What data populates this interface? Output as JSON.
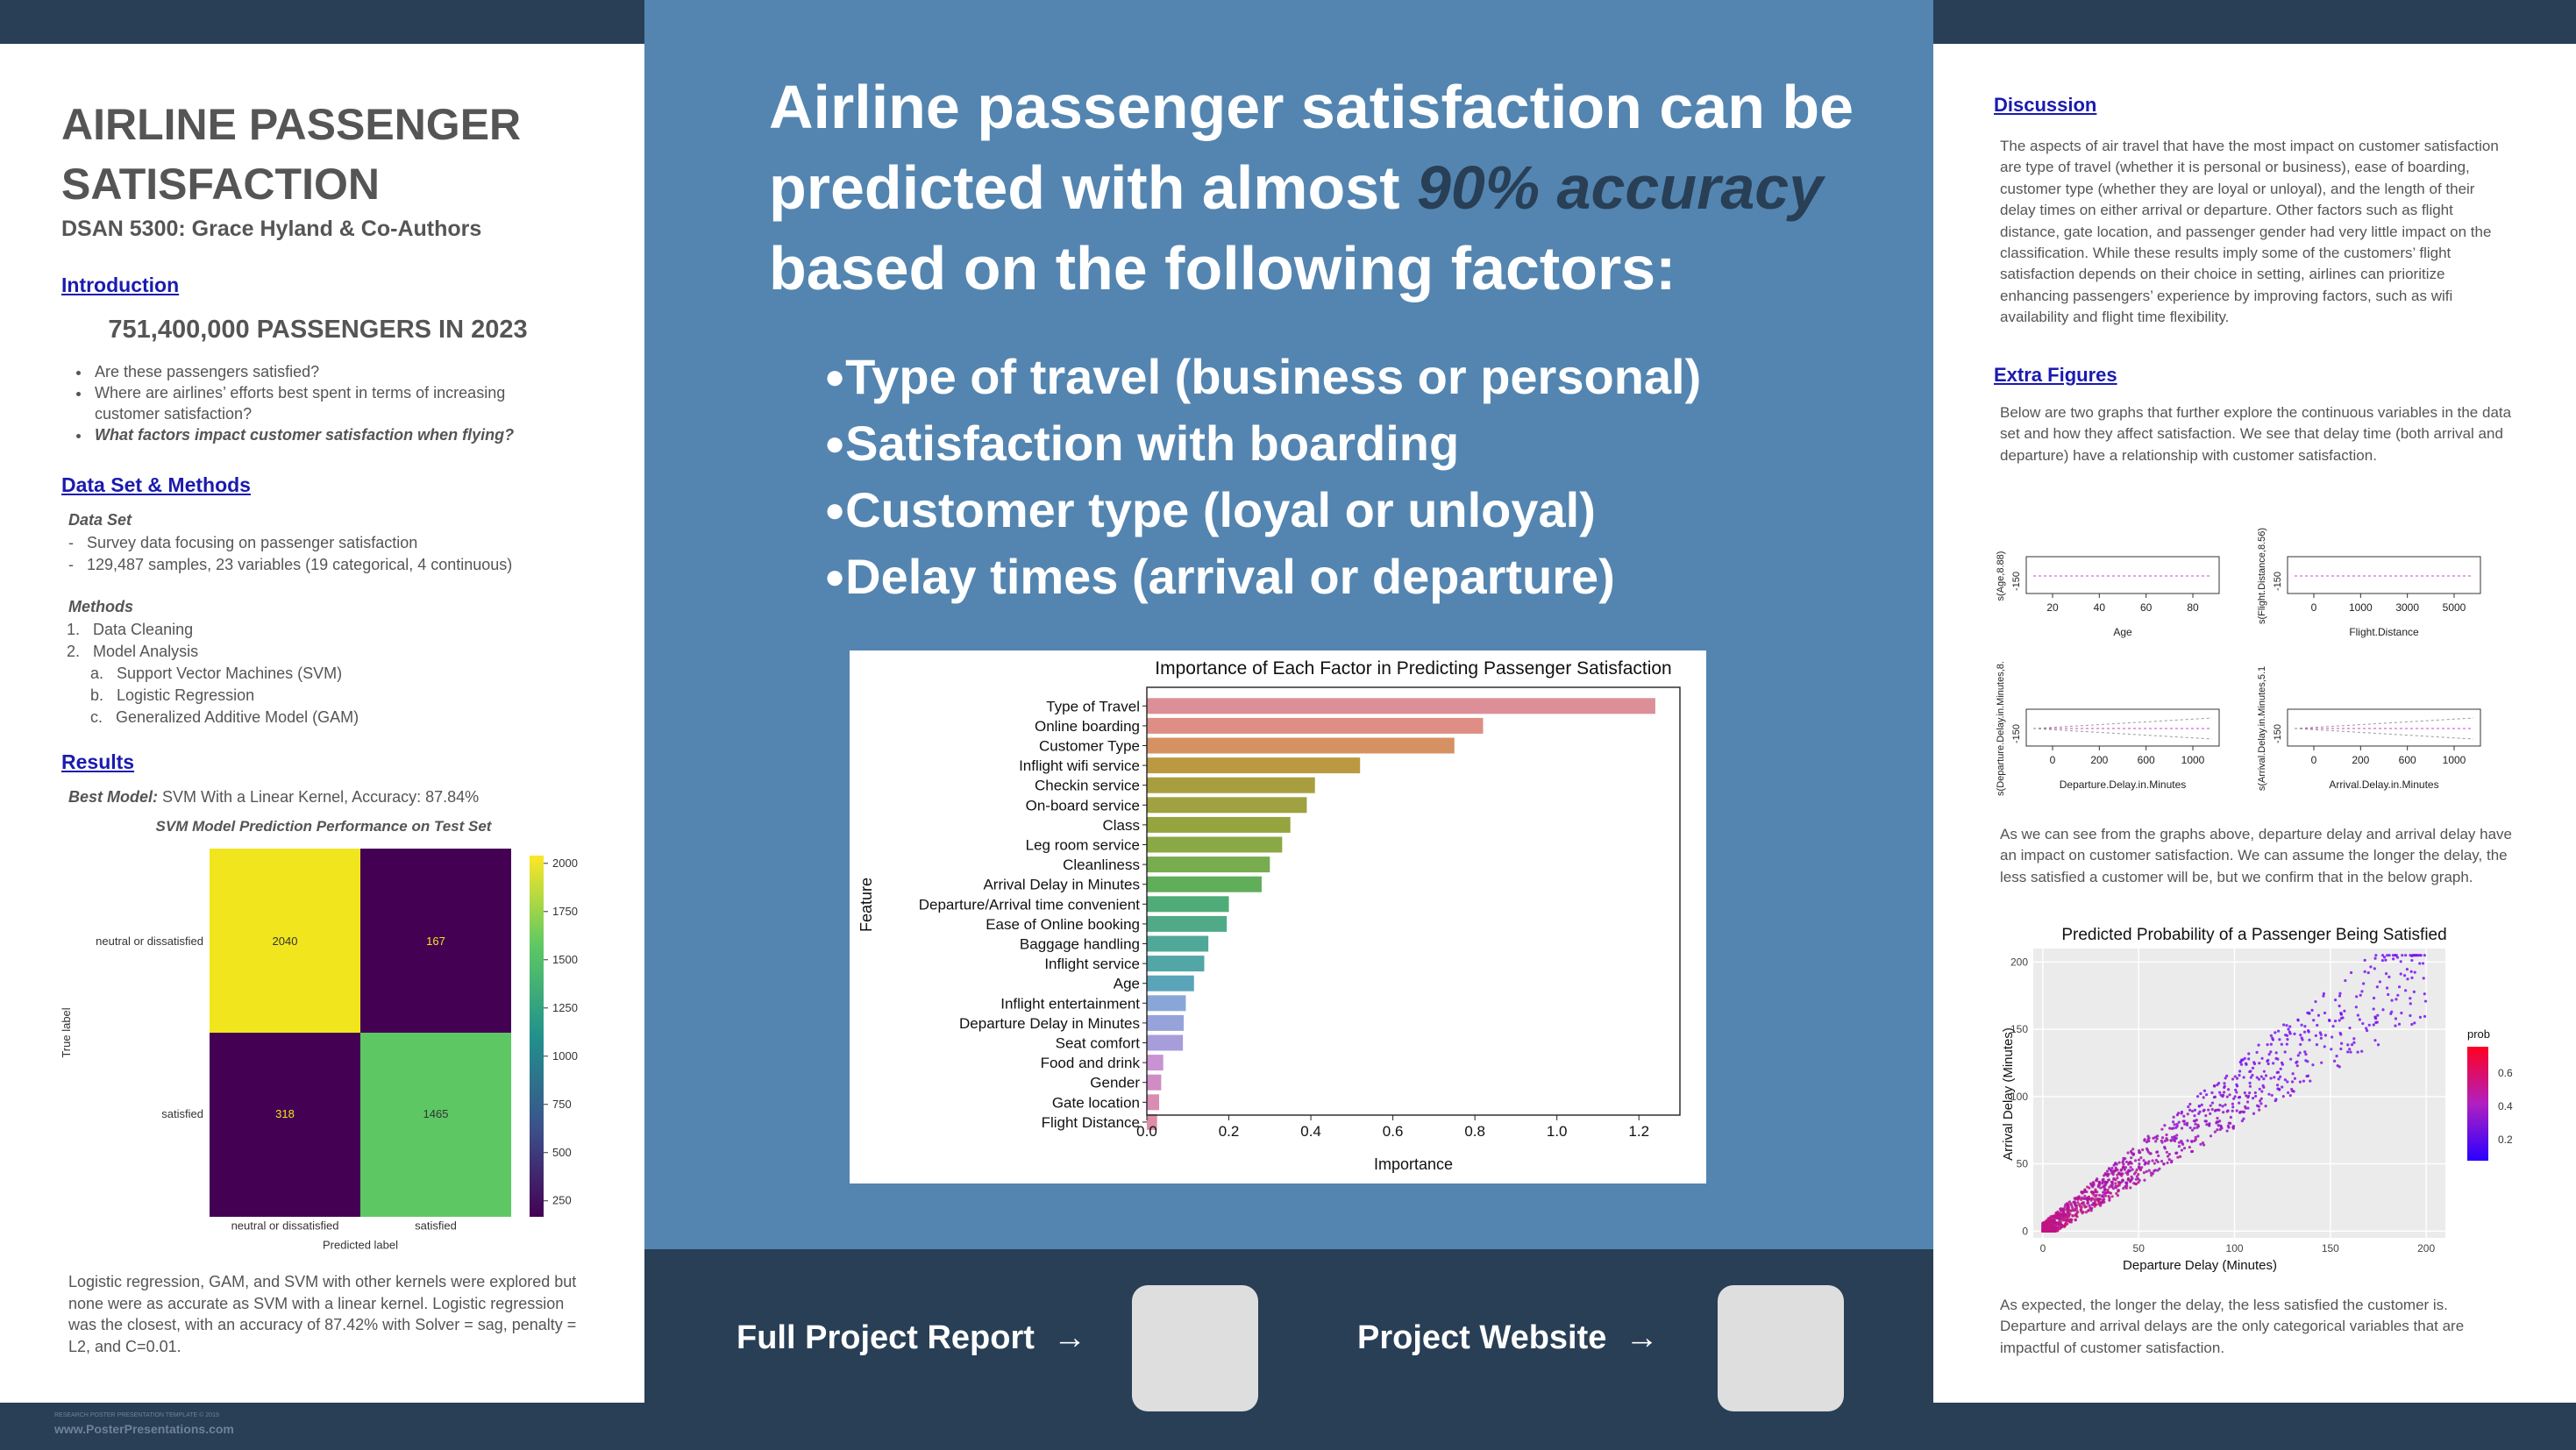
{
  "poster": {
    "title": "AIRLINE PASSENGER SATISFACTION",
    "authors": "DSAN 5300: Grace Hyland & Co-Authors"
  },
  "introduction": {
    "heading": "Introduction",
    "stat": "751,400,000 PASSENGERS IN 2023",
    "bullets": [
      "Are these passengers satisfied?",
      "Where are airlines’ efforts best spent in terms of increasing customer satisfaction?",
      "What factors impact customer satisfaction when flying?"
    ]
  },
  "methods": {
    "heading": "Data Set & Methods",
    "data_set_label": "Data Set",
    "data_set_items": [
      "Survey data focusing on passenger satisfaction",
      "129,487 samples, 23 variables (19 categorical, 4 continuous)"
    ],
    "methods_label": "Methods",
    "methods_items": [
      {
        "num": "1.",
        "text": "Data Cleaning"
      },
      {
        "num": "2.",
        "text": "Model Analysis"
      }
    ],
    "sub_items": [
      {
        "num": "a.",
        "text": "Support Vector Machines (SVM)"
      },
      {
        "num": "b.",
        "text": "Logistic Regression"
      },
      {
        "num": "c.",
        "text": "Generalized Additive Model (GAM)"
      }
    ]
  },
  "results": {
    "heading": "Results",
    "best_model_label": "Best Model:",
    "best_model_text": " SVM With a Linear Kernel, Accuracy: 87.84%",
    "conclusion": "Logistic regression, GAM, and SVM with other kernels were explored but none were as accurate as SVM with a linear kernel. Logistic regression was the closest, with an accuracy of 87.42% with Solver = sag, penalty = L2, and C=0.01."
  },
  "main": {
    "headline_part1": "Airline passenger satisfaction can be predicted with almost ",
    "headline_em": "90% accuracy",
    "headline_part2": " based on the following factors:",
    "factors": [
      "Type of travel (business or personal)",
      "Satisfaction with boarding",
      "Customer type (loyal or unloyal)",
      "Delay times (arrival or departure)"
    ]
  },
  "footer": {
    "report_label": "Full Project Report",
    "website_label": "Project Website",
    "arrow": "→",
    "template_note": "RESEARCH POSTER PRESENTATION TEMPLATE © 2019",
    "template_url": "www.PosterPresentations.com"
  },
  "discussion": {
    "heading": "Discussion",
    "text": "The aspects of air travel that have the most impact on customer satisfaction are type of travel (whether it is personal or business), ease of boarding, customer type (whether they are loyal or unloyal), and the length of their delay times on either arrival or departure. Other factors such as flight distance, gate location, and passenger gender had very little impact on the classification. While these results imply some of the customers’ flight satisfaction depends on their choice in setting, airlines can prioritize enhancing passengers’ experience by improving factors, such as wifi availability and flight time flexibility."
  },
  "extra": {
    "heading": "Extra Figures",
    "intro": "Below are two graphs that further explore the continuous variables in the data set and how they affect satisfaction. We see that delay time (both arrival and departure) have a relationship with customer satisfaction.",
    "middle": "As we can see from the graphs above, departure delay and arrival delay have an impact on customer satisfaction. We can assume the longer the delay, the less satisfied a customer will be, but we confirm that in the below graph.",
    "closing": "As expected, the longer the delay, the less satisfied the customer is. Departure and arrival delays are the only categorical variables that are impactful of customer satisfaction."
  },
  "colors": {
    "dark_band": "#283f56",
    "mid_blue": "#5385b0",
    "link_blue": "#1a1ab0",
    "text_gray": "#555555"
  },
  "chart_data": [
    {
      "type": "heatmap",
      "title": "SVM Model Prediction Performance on Test Set",
      "xlabel": "Predicted label",
      "ylabel": "True label",
      "x_categories": [
        "neutral or dissatisfied",
        "satisfied"
      ],
      "y_categories": [
        "neutral or dissatisfied",
        "satisfied"
      ],
      "values": [
        [
          2040,
          167
        ],
        [
          318,
          1465
        ]
      ],
      "colorbar_ticks": [
        250,
        500,
        750,
        1000,
        1250,
        1500,
        1750,
        2000
      ]
    },
    {
      "type": "bar",
      "orientation": "horizontal",
      "title": "Importance of Each Factor in Predicting Passenger Satisfaction",
      "xlabel": "Importance",
      "ylabel": "Feature",
      "xlim": [
        0,
        1.3
      ],
      "xticks": [
        "0.0",
        "0.2",
        "0.4",
        "0.6",
        "0.8",
        "1.0",
        "1.2"
      ],
      "categories": [
        "Type of Travel",
        "Online boarding",
        "Customer Type",
        "Inflight wifi service",
        "Checkin service",
        "On-board service",
        "Class",
        "Leg room service",
        "Cleanliness",
        "Arrival Delay in Minutes",
        "Departure/Arrival time convenient",
        "Ease of Online booking",
        "Baggage handling",
        "Inflight service",
        "Age",
        "Inflight entertainment",
        "Departure Delay in Minutes",
        "Seat comfort",
        "Food and drink",
        "Gender",
        "Gate location",
        "Flight Distance"
      ],
      "values": [
        1.24,
        0.82,
        0.75,
        0.52,
        0.41,
        0.39,
        0.35,
        0.33,
        0.3,
        0.28,
        0.2,
        0.195,
        0.15,
        0.14,
        0.115,
        0.095,
        0.09,
        0.088,
        0.04,
        0.035,
        0.03,
        0.025
      ],
      "colors": [
        "#dd8f98",
        "#de8e84",
        "#d69162",
        "#bb9942",
        "#a99e3f",
        "#a0a141",
        "#96a43f",
        "#8aa845",
        "#78ac4f",
        "#60ae5a",
        "#4fac78",
        "#50aa88",
        "#4fa898",
        "#52a6a6",
        "#5aa4ba",
        "#88a7d8",
        "#96a3da",
        "#a79ddb",
        "#c992d2",
        "#d08cc4",
        "#d98db2",
        "#db8ea5"
      ]
    },
    {
      "type": "line",
      "title": "",
      "panels": [
        {
          "ylabel": "s(Age,8.88)",
          "xlabel": "Age",
          "xticks": [
            "20",
            "40",
            "60",
            "80"
          ],
          "ytick": "-150"
        },
        {
          "ylabel": "s(Flight.Distance,8.56)",
          "xlabel": "Flight.Distance",
          "xticks": [
            "0",
            "1000",
            "3000",
            "5000"
          ],
          "ytick": "-150"
        },
        {
          "ylabel": "s(Departure.Delay.in.Minutes,8.",
          "xlabel": "Departure.Delay.in.Minutes",
          "xticks": [
            "0",
            "200",
            "600",
            "1000"
          ],
          "ytick": "-150"
        },
        {
          "ylabel": "s(Arrival.Delay.in.Minutes,5.1",
          "xlabel": "Arrival.Delay.in.Minutes",
          "xticks": [
            "0",
            "200",
            "600",
            "1000"
          ],
          "ytick": "-150"
        }
      ]
    },
    {
      "type": "scatter",
      "title": "Predicted Probability of a Passenger Being Satisfied",
      "xlabel": "Departure Delay (Minutes)",
      "ylabel": "Arrival Delay (Minutes)",
      "xlim": [
        -5,
        210
      ],
      "ylim": [
        -5,
        210
      ],
      "xticks": [
        0,
        50,
        100,
        150,
        200
      ],
      "yticks": [
        0,
        50,
        100,
        150,
        200
      ],
      "legend_title": "prob",
      "legend_ticks": [
        "0.6",
        "0.4",
        "0.2"
      ],
      "legend_placement": "right"
    }
  ]
}
